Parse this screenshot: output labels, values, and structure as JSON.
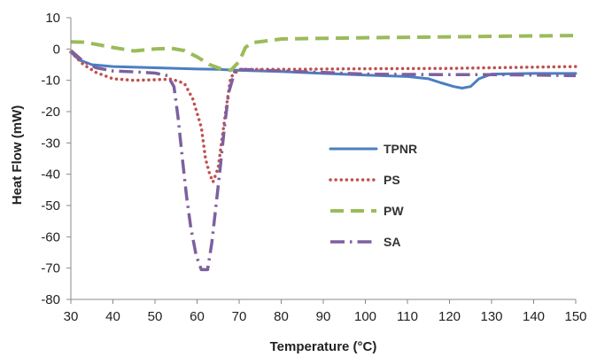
{
  "chart_data": {
    "type": "line",
    "title": "",
    "xlabel": "Temperature (°C)",
    "ylabel": "Heat Flow (mW)",
    "xlim": [
      30,
      150
    ],
    "ylim": [
      -80,
      10
    ],
    "xticks": [
      30,
      40,
      50,
      60,
      70,
      80,
      90,
      100,
      110,
      120,
      130,
      140,
      150
    ],
    "yticks": [
      10,
      0,
      -10,
      -20,
      -30,
      -40,
      -50,
      -60,
      -70,
      -80
    ],
    "grid": false,
    "legend_position": "center-right",
    "series": [
      {
        "name": "TPNR",
        "color": "#4a7fc1",
        "style": "solid",
        "points": [
          [
            30,
            -1
          ],
          [
            32,
            -3.5
          ],
          [
            35,
            -5
          ],
          [
            40,
            -5.6
          ],
          [
            50,
            -6
          ],
          [
            60,
            -6.4
          ],
          [
            65,
            -6.5
          ],
          [
            70,
            -6.8
          ],
          [
            80,
            -7.2
          ],
          [
            90,
            -7.8
          ],
          [
            100,
            -8.3
          ],
          [
            110,
            -8.8
          ],
          [
            115,
            -9.5
          ],
          [
            118,
            -10.8
          ],
          [
            121,
            -12
          ],
          [
            123,
            -12.5
          ],
          [
            125,
            -12
          ],
          [
            127,
            -9.5
          ],
          [
            130,
            -8
          ],
          [
            140,
            -7.8
          ],
          [
            150,
            -7.8
          ]
        ]
      },
      {
        "name": "PS",
        "color": "#c0504d",
        "style": "dotted",
        "points": [
          [
            30,
            -1
          ],
          [
            33,
            -5
          ],
          [
            36,
            -7.5
          ],
          [
            40,
            -9.5
          ],
          [
            45,
            -10
          ],
          [
            50,
            -9.8
          ],
          [
            54,
            -9.6
          ],
          [
            57,
            -11
          ],
          [
            59,
            -16
          ],
          [
            61,
            -25
          ],
          [
            62,
            -35
          ],
          [
            63,
            -40
          ],
          [
            63.8,
            -42.5
          ],
          [
            65,
            -38
          ],
          [
            66,
            -28
          ],
          [
            67,
            -18
          ],
          [
            68,
            -9
          ],
          [
            70,
            -6.5
          ],
          [
            80,
            -6.5
          ],
          [
            100,
            -6.3
          ],
          [
            120,
            -6.2
          ],
          [
            130,
            -6
          ],
          [
            140,
            -5.8
          ],
          [
            150,
            -5.6
          ]
        ]
      },
      {
        "name": "PW",
        "color": "#9bbb59",
        "style": "dashed",
        "points": [
          [
            30,
            2.3
          ],
          [
            33,
            2.2
          ],
          [
            36,
            1.5
          ],
          [
            40,
            0.5
          ],
          [
            45,
            -0.6
          ],
          [
            50,
            0
          ],
          [
            54,
            0.2
          ],
          [
            57,
            -0.5
          ],
          [
            60,
            -2.5
          ],
          [
            63,
            -5
          ],
          [
            66,
            -6.5
          ],
          [
            68,
            -6.8
          ],
          [
            70,
            -4
          ],
          [
            71.5,
            0.5
          ],
          [
            73,
            2
          ],
          [
            80,
            3.2
          ],
          [
            100,
            3.6
          ],
          [
            120,
            3.9
          ],
          [
            140,
            4.2
          ],
          [
            150,
            4.3
          ]
        ]
      },
      {
        "name": "SA",
        "color": "#7d60a0",
        "style": "dashdot",
        "points": [
          [
            30,
            -0.5
          ],
          [
            33,
            -4
          ],
          [
            36,
            -6
          ],
          [
            40,
            -7
          ],
          [
            45,
            -7.3
          ],
          [
            50,
            -7.7
          ],
          [
            53,
            -8.5
          ],
          [
            54.5,
            -12
          ],
          [
            55.5,
            -22
          ],
          [
            56.5,
            -35
          ],
          [
            57.5,
            -47
          ],
          [
            58.5,
            -57
          ],
          [
            59.8,
            -66
          ],
          [
            61,
            -70.5
          ],
          [
            62.5,
            -70.5
          ],
          [
            63.5,
            -62
          ],
          [
            64.5,
            -50
          ],
          [
            65.5,
            -38
          ],
          [
            66.5,
            -25
          ],
          [
            67.5,
            -14
          ],
          [
            69,
            -7
          ],
          [
            70,
            -6.5
          ],
          [
            80,
            -7
          ],
          [
            90,
            -7.5
          ],
          [
            100,
            -8
          ],
          [
            110,
            -8.1
          ],
          [
            120,
            -8.2
          ],
          [
            130,
            -8.2
          ],
          [
            140,
            -8.3
          ],
          [
            150,
            -8.5
          ]
        ]
      }
    ]
  }
}
